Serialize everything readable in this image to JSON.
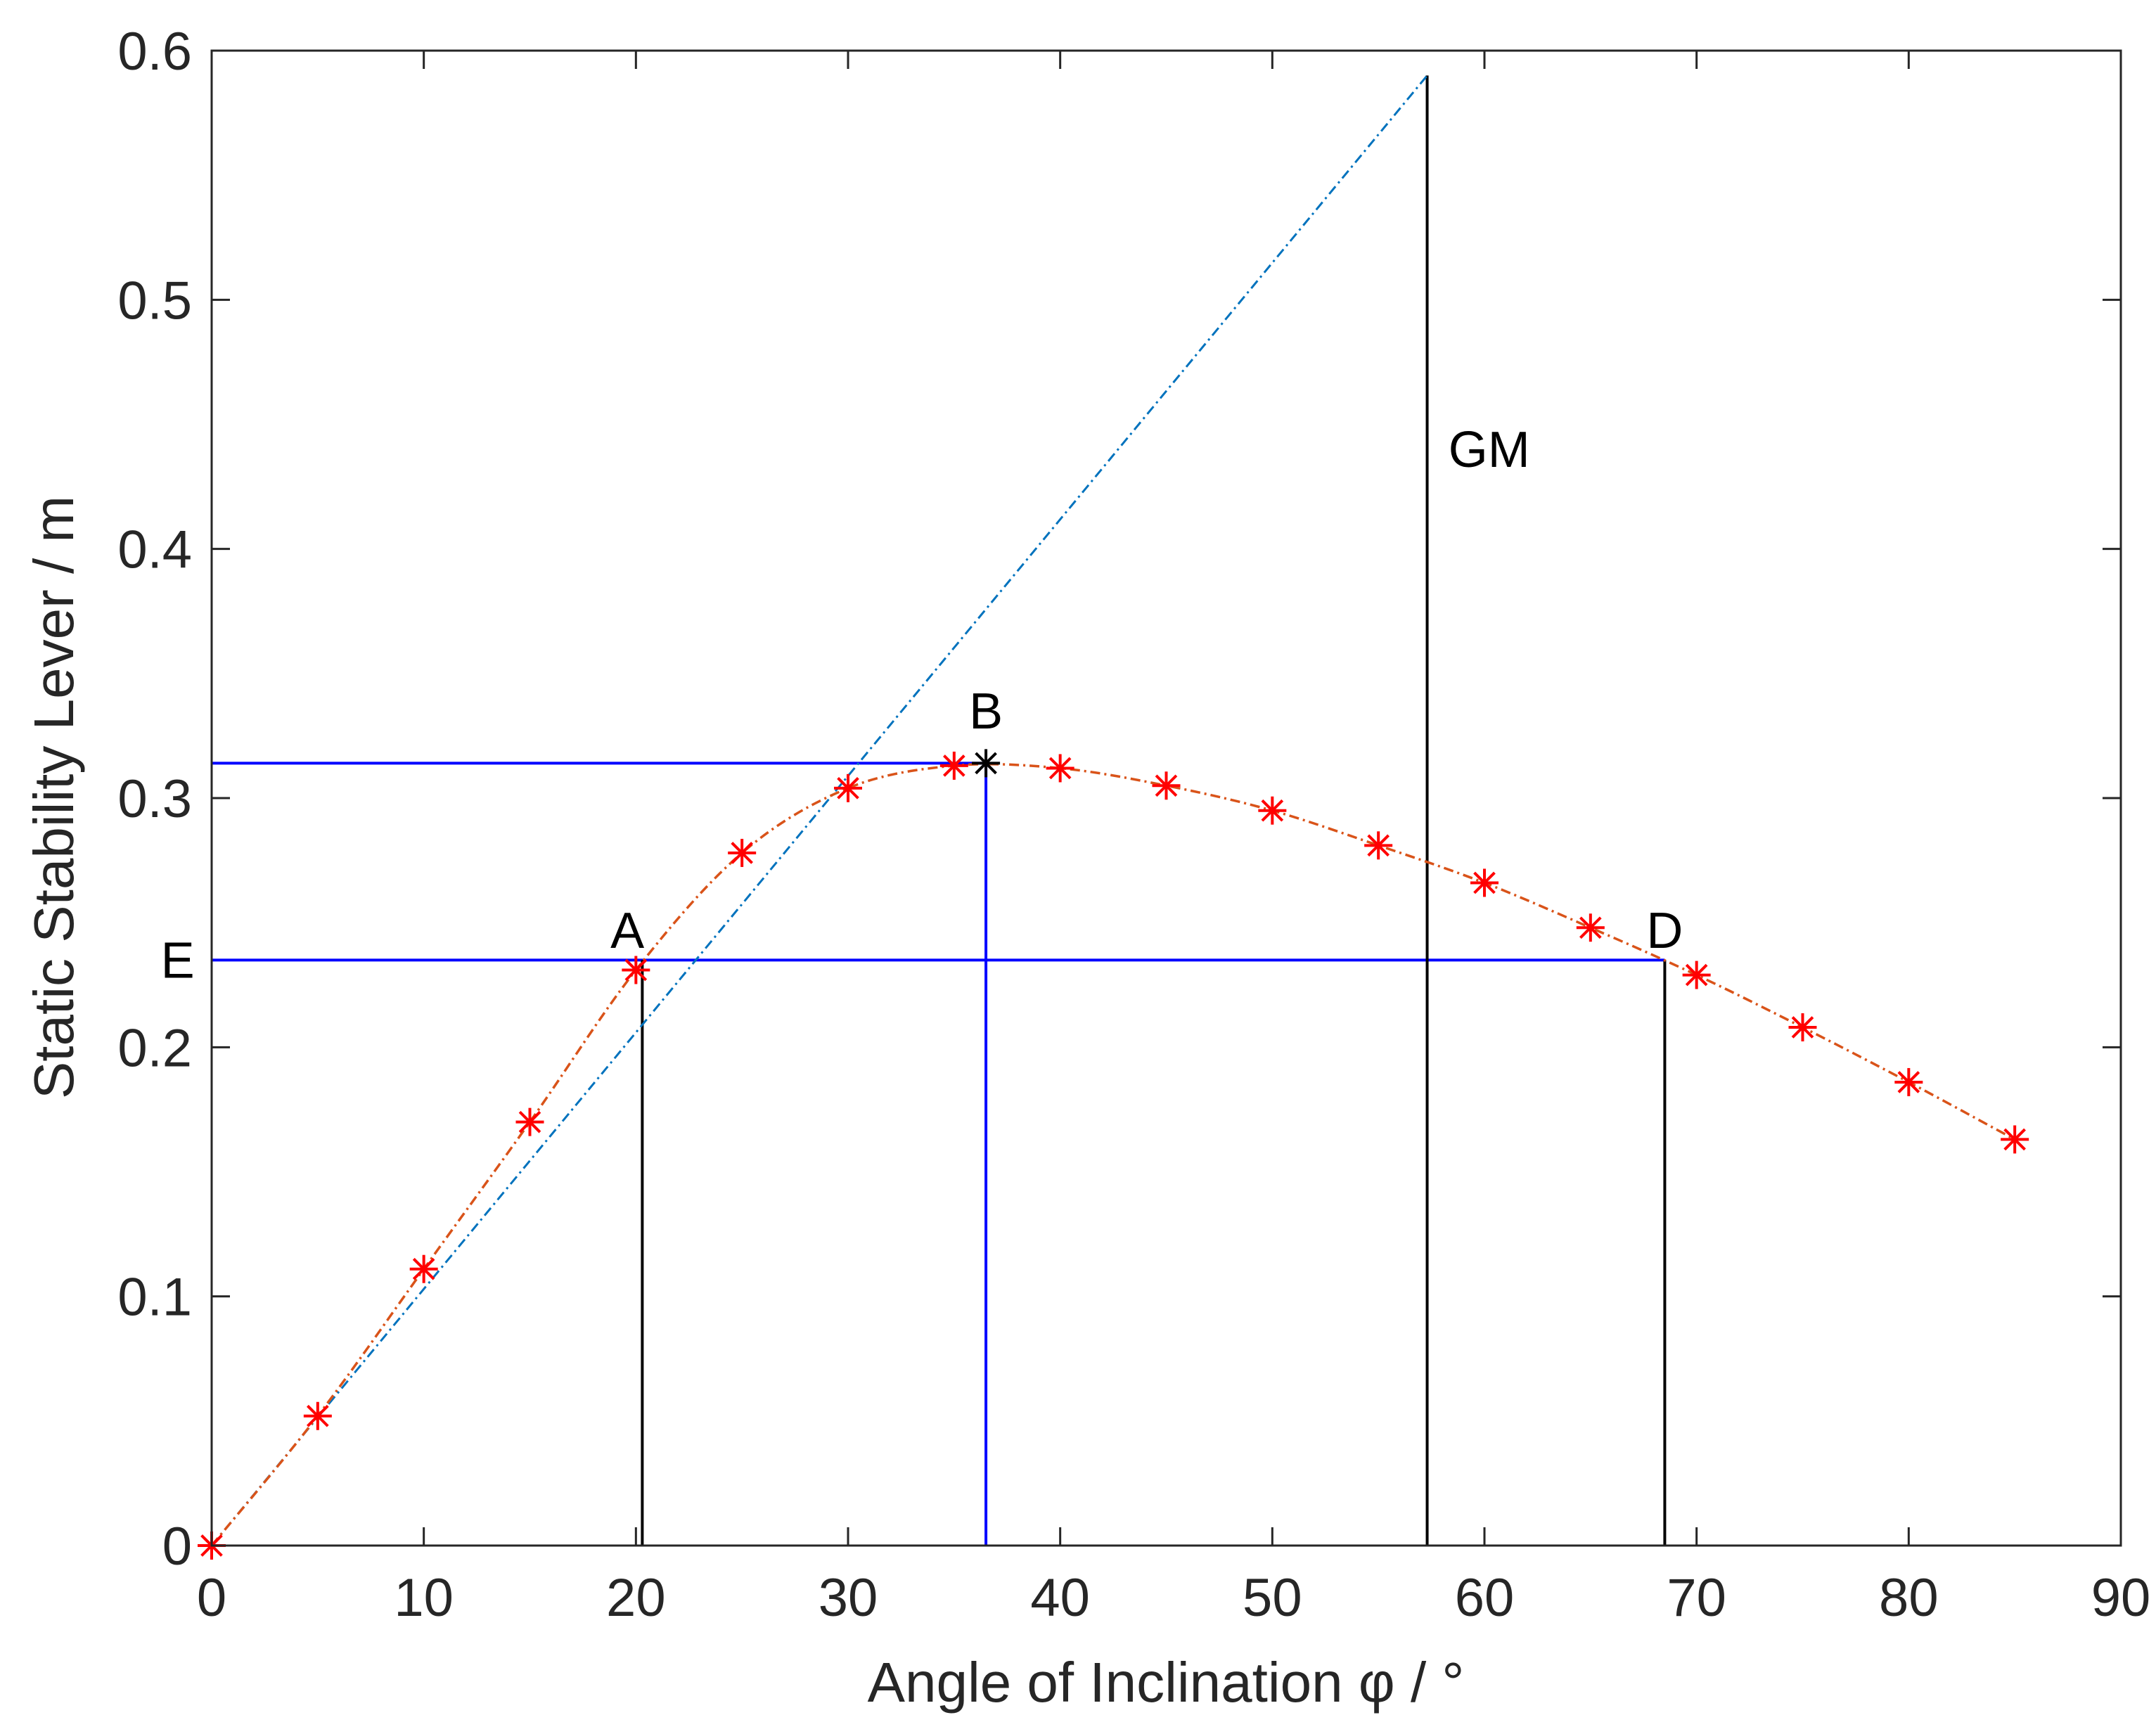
{
  "chart_data": {
    "type": "line",
    "xlabel": "Angle of Inclination φ / °",
    "ylabel": "Static Stability Lever / m",
    "xlim": [
      0,
      90
    ],
    "ylim": [
      0,
      0.6
    ],
    "xticks": [
      "0",
      "10",
      "20",
      "30",
      "40",
      "50",
      "60",
      "70",
      "80",
      "90"
    ],
    "yticks": [
      "0",
      "0.1",
      "0.2",
      "0.3",
      "0.4",
      "0.5",
      "0.6"
    ],
    "grid": false,
    "series": [
      {
        "kind": "curve-with-markers",
        "color": "#d95319",
        "marker_color": "#ff0000",
        "x": [
          0,
          5,
          10,
          15,
          20,
          25,
          30,
          35,
          40,
          45,
          50,
          55,
          60,
          65,
          70,
          75,
          80,
          85
        ],
        "y": [
          0,
          0.052,
          0.111,
          0.17,
          0.231,
          0.278,
          0.304,
          0.313,
          0.312,
          0.305,
          0.295,
          0.281,
          0.266,
          0.248,
          0.229,
          0.208,
          0.186,
          0.163
        ]
      },
      {
        "kind": "tangent",
        "color": "#0072bd",
        "x": [
          0,
          57.3
        ],
        "y": [
          0,
          0.59
        ]
      }
    ],
    "max_point": {
      "x": 36.5,
      "y": 0.314,
      "color": "#000000"
    },
    "reference_lines": {
      "blue_color": "#0000ff",
      "black_color": "#000000",
      "max_level": 0.314,
      "max_angle": 36.5,
      "heel_level": 0.235,
      "a_angle": 20.3,
      "d_angle": 68.5,
      "gm_angle": 57.3,
      "gm_top": 0.59
    },
    "annotations": [
      {
        "text": "GM",
        "x": 58.3,
        "y": 0.44
      },
      {
        "text": "B",
        "x": 36.5,
        "y": 0.335
      },
      {
        "text": "A",
        "x": 18.8,
        "y": 0.247
      },
      {
        "text": "D",
        "x": 68.5,
        "y": 0.247
      },
      {
        "text": "E",
        "x": -2.4,
        "y": 0.235
      }
    ]
  }
}
